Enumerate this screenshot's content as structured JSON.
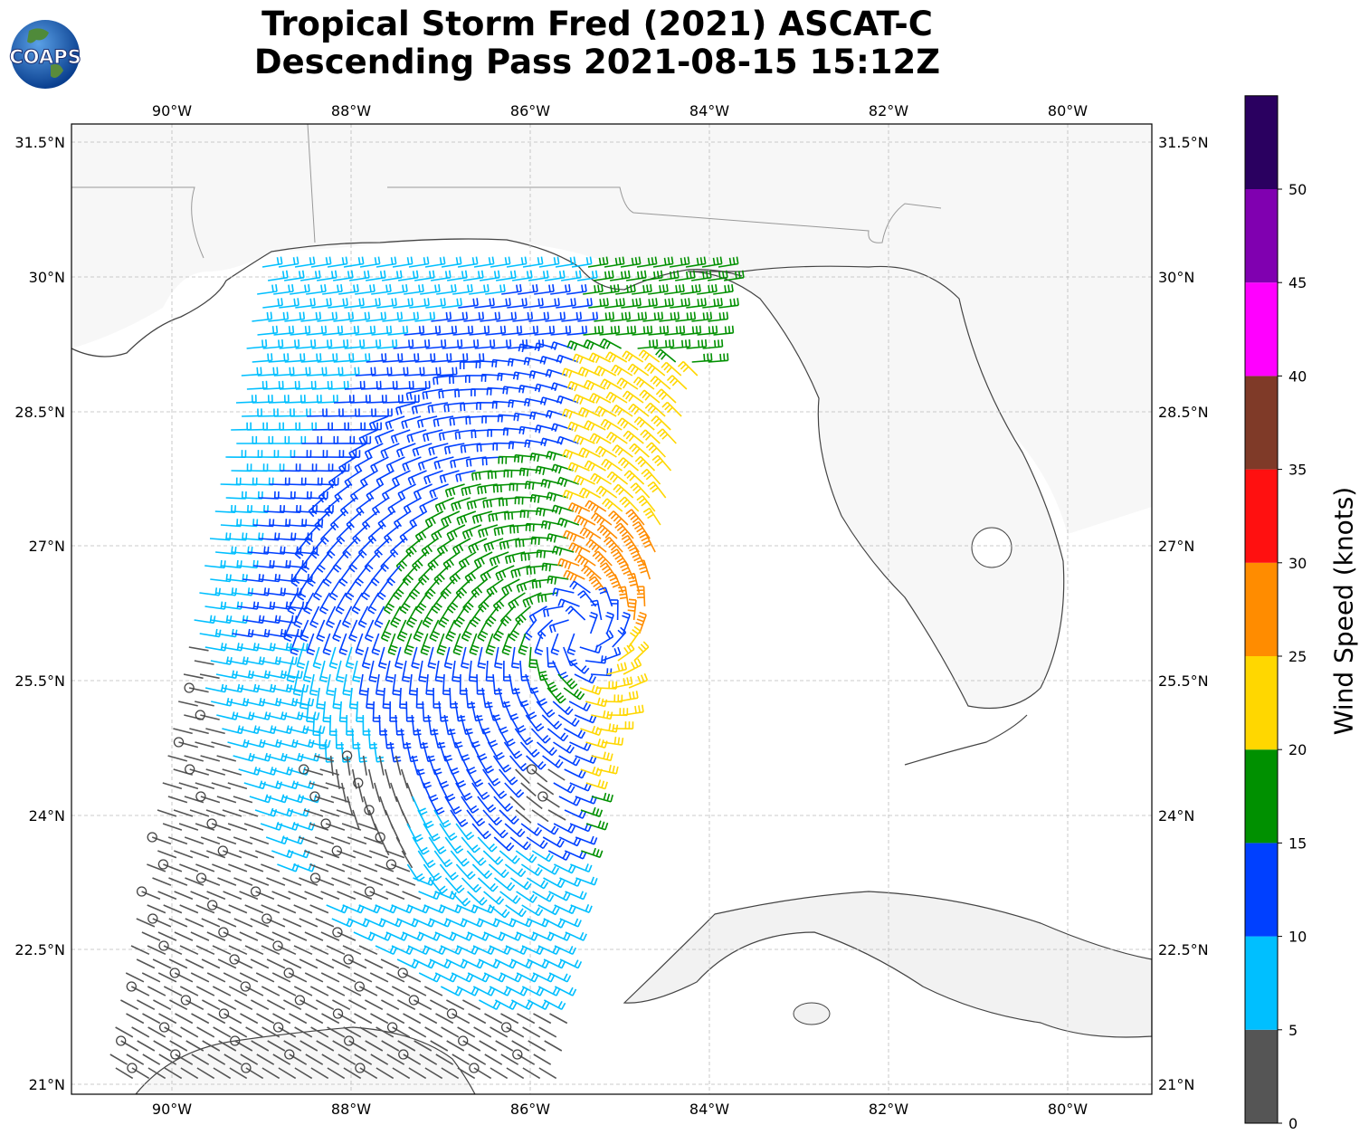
{
  "title_line1": "Tropical Storm Fred (2021) ASCAT-C",
  "title_line2": "Descending Pass 2021-08-15 15:12Z",
  "logo_text": "COAPS",
  "lon_labels": [
    "90°W",
    "88°W",
    "86°W",
    "84°W",
    "82°W",
    "80°W"
  ],
  "lat_labels": [
    "31.5°N",
    "30°N",
    "28.5°N",
    "27°N",
    "25.5°N",
    "24°N",
    "22.5°N",
    "21°N"
  ],
  "colorbar": {
    "label": "Wind Speed (knots)",
    "ticks": [
      "0",
      "5",
      "10",
      "15",
      "20",
      "25",
      "30",
      "35",
      "40",
      "45",
      "50"
    ],
    "bins": [
      {
        "min": 0,
        "max": 5,
        "color": "#555555"
      },
      {
        "min": 5,
        "max": 10,
        "color": "#00bfff"
      },
      {
        "min": 10,
        "max": 15,
        "color": "#0040ff"
      },
      {
        "min": 15,
        "max": 20,
        "color": "#009000"
      },
      {
        "min": 20,
        "max": 25,
        "color": "#ffd700"
      },
      {
        "min": 25,
        "max": 30,
        "color": "#ff8c00"
      },
      {
        "min": 30,
        "max": 35,
        "color": "#ff1010"
      },
      {
        "min": 35,
        "max": 40,
        "color": "#7f3a28"
      },
      {
        "min": 40,
        "max": 45,
        "color": "#ff00ff"
      },
      {
        "min": 45,
        "max": 50,
        "color": "#8000b0"
      },
      {
        "min": 50,
        "max": 55,
        "color": "#2a0060"
      }
    ]
  }
}
